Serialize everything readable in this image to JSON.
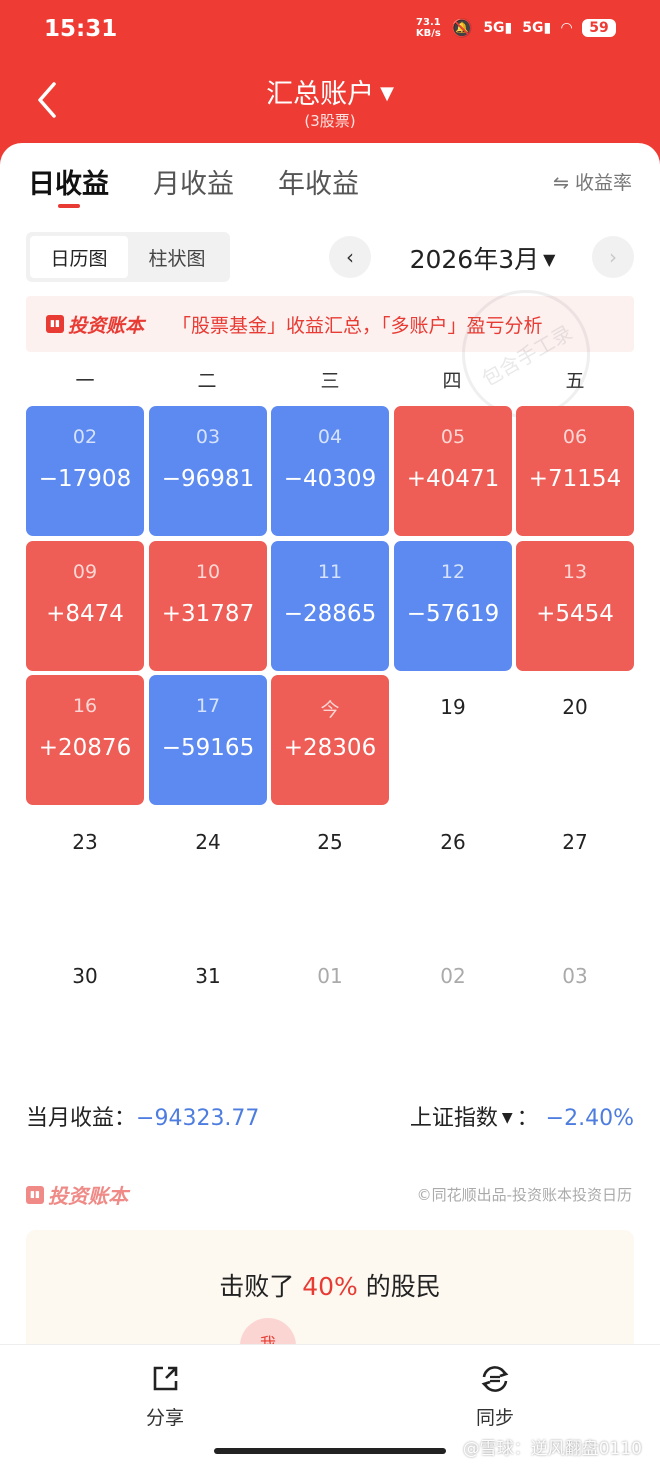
{
  "status_bar": {
    "time": "15:31",
    "net_speed": "73.1",
    "net_unit": "KB/s",
    "sig1": "5G",
    "sig2": "5G",
    "battery": "59"
  },
  "nav": {
    "title": "汇总账户",
    "subtitle": "(3股票)"
  },
  "tabs": [
    {
      "label": "日收益"
    },
    {
      "label": "月收益"
    },
    {
      "label": "年收益"
    }
  ],
  "rate_toggle": "⇋ 收益率",
  "view_toggle": [
    {
      "label": "日历图"
    },
    {
      "label": "柱状图"
    }
  ],
  "month": {
    "label": "2026年3月"
  },
  "banner": {
    "brand": "投资账本",
    "text": "「股票基金」收益汇总，「多账户」盈亏分析"
  },
  "watermark": "包含手工录",
  "weekdays": [
    "一",
    "二",
    "三",
    "四",
    "五"
  ],
  "calendar": [
    {
      "day": "02",
      "value": "−17908",
      "type": "blue"
    },
    {
      "day": "03",
      "value": "−96981",
      "type": "blue"
    },
    {
      "day": "04",
      "value": "−40309",
      "type": "blue"
    },
    {
      "day": "05",
      "value": "+40471",
      "type": "red"
    },
    {
      "day": "06",
      "value": "+71154",
      "type": "red"
    },
    {
      "day": "09",
      "value": "+8474",
      "type": "red"
    },
    {
      "day": "10",
      "value": "+31787",
      "type": "red"
    },
    {
      "day": "11",
      "value": "−28865",
      "type": "blue"
    },
    {
      "day": "12",
      "value": "−57619",
      "type": "blue"
    },
    {
      "day": "13",
      "value": "+5454",
      "type": "red"
    },
    {
      "day": "16",
      "value": "+20876",
      "type": "red"
    },
    {
      "day": "17",
      "value": "−59165",
      "type": "blue"
    },
    {
      "day": "今",
      "value": "+28306",
      "type": "red"
    },
    {
      "day": "19",
      "value": "",
      "type": "plain"
    },
    {
      "day": "20",
      "value": "",
      "type": "plain"
    },
    {
      "day": "23",
      "value": "",
      "type": "plain"
    },
    {
      "day": "24",
      "value": "",
      "type": "plain"
    },
    {
      "day": "25",
      "value": "",
      "type": "plain"
    },
    {
      "day": "26",
      "value": "",
      "type": "plain"
    },
    {
      "day": "27",
      "value": "",
      "type": "plain"
    },
    {
      "day": "30",
      "value": "",
      "type": "plain"
    },
    {
      "day": "31",
      "value": "",
      "type": "plain"
    },
    {
      "day": "01",
      "value": "",
      "type": "dim"
    },
    {
      "day": "02",
      "value": "",
      "type": "dim"
    },
    {
      "day": "03",
      "value": "",
      "type": "dim"
    }
  ],
  "summary": {
    "month_label": "当月收益：",
    "month_value": "−94323.77",
    "index_label": "上证指数",
    "index_sep": "：",
    "index_value": "−2.40%"
  },
  "brand_footer": "投资账本",
  "copyright": "©同花顺出品-投资账本投资日历",
  "beat": {
    "prefix": "击败了",
    "percent": "40%",
    "suffix": "的股民",
    "me": "我"
  },
  "bottom": {
    "share": "分享",
    "sync": "同步"
  },
  "watermark_bottom": "@雪球：逆风翻盘0110",
  "colors": {
    "accent": "#ee3b34",
    "profit": "#ee5d56",
    "loss": "#5c8af0"
  }
}
